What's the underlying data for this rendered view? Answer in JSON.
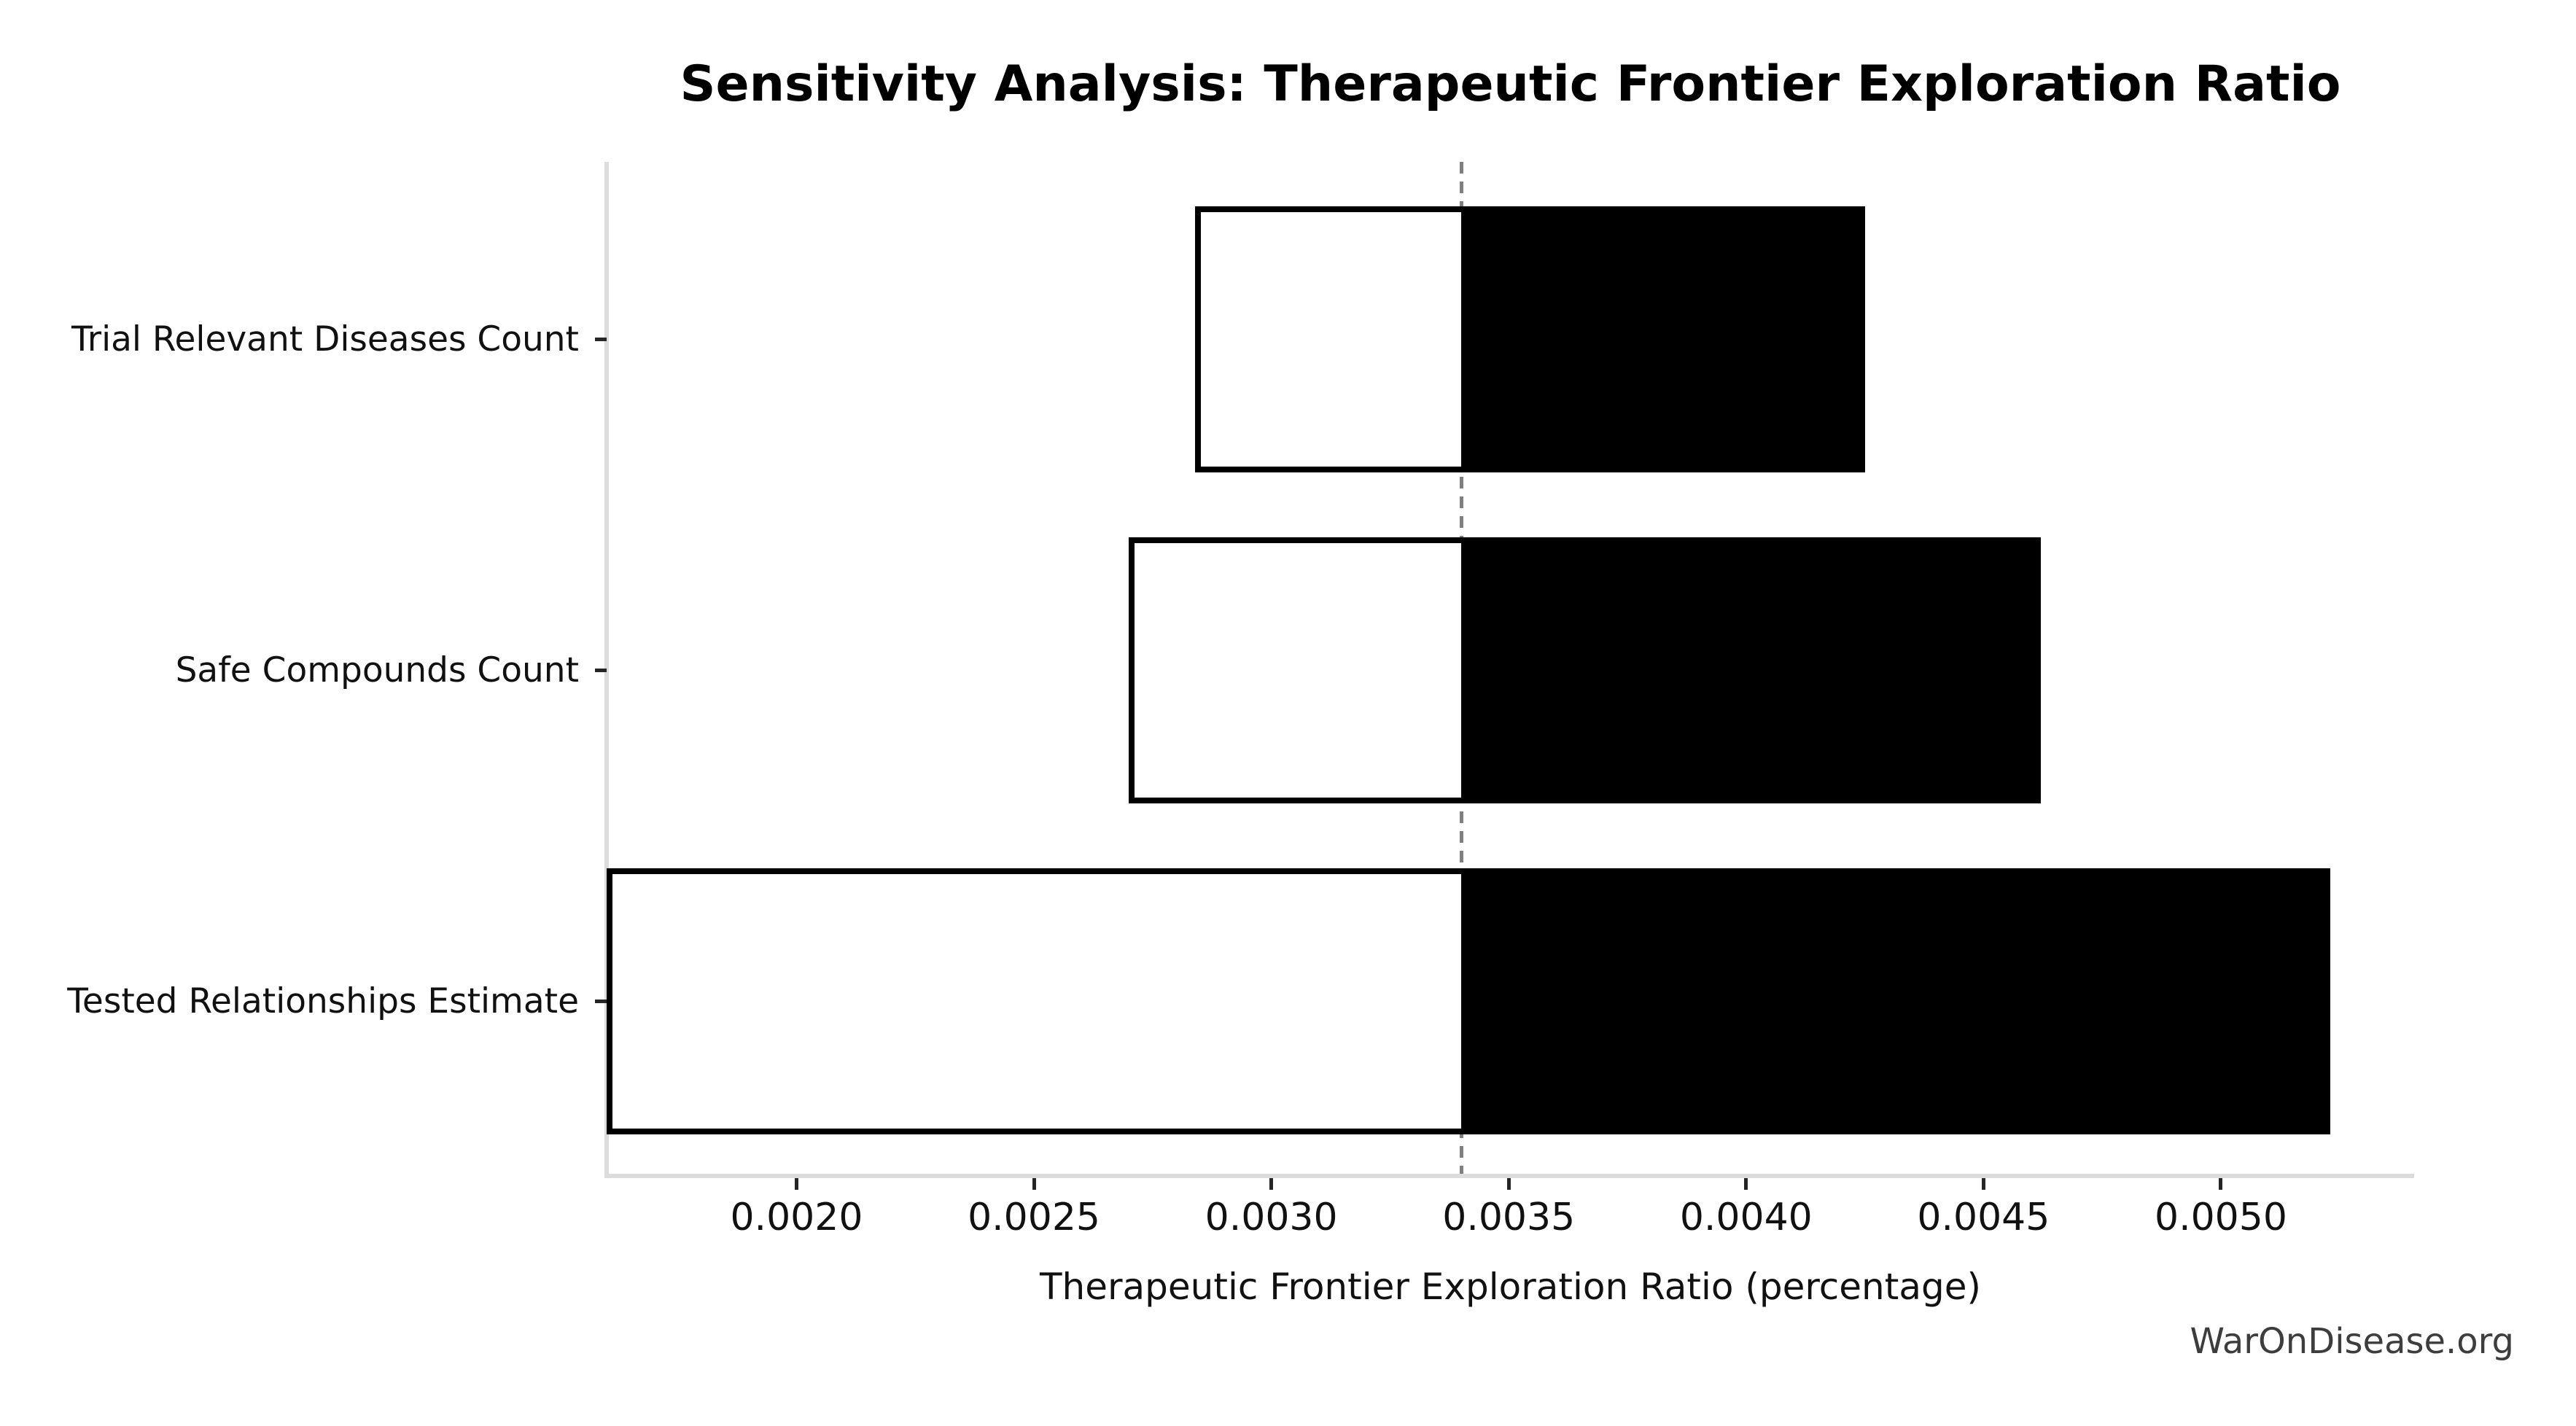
{
  "watermark": "WarOnDisease.org",
  "chart_data": {
    "type": "bar",
    "subtype": "tornado-sensitivity",
    "orientation": "horizontal",
    "title": "Sensitivity Analysis: Therapeutic Frontier Exploration Ratio",
    "xlabel": "Therapeutic Frontier Exploration Ratio (percentage)",
    "ylabel": "",
    "categories": [
      "Trial Relevant Diseases Count",
      "Safe Compounds Count",
      "Tested Relationships Estimate"
    ],
    "series": [
      {
        "name": "low",
        "values": [
          0.00284,
          0.0027,
          0.0016
        ]
      },
      {
        "name": "high",
        "values": [
          0.00425,
          0.00462,
          0.00523
        ]
      }
    ],
    "baseline": 0.0034,
    "xlim": [
      0.0016,
      0.005407
    ],
    "xticks": [
      0.002,
      0.0025,
      0.003,
      0.0035,
      0.004,
      0.0045,
      0.005
    ],
    "xtick_labels": [
      "0.0020",
      "0.0025",
      "0.0030",
      "0.0035",
      "0.0040",
      "0.0045",
      "0.0050"
    ],
    "grid": false,
    "legend": false,
    "colors": {
      "bar_low_fill": "#ffffff",
      "bar_high_fill": "#000000",
      "bar_edge": "#000000",
      "baseline_line": "#7f7f7f",
      "spine": "#dcdcdc",
      "tick": "#262626",
      "text": "#111111",
      "watermark": "#3d3d3d"
    }
  }
}
